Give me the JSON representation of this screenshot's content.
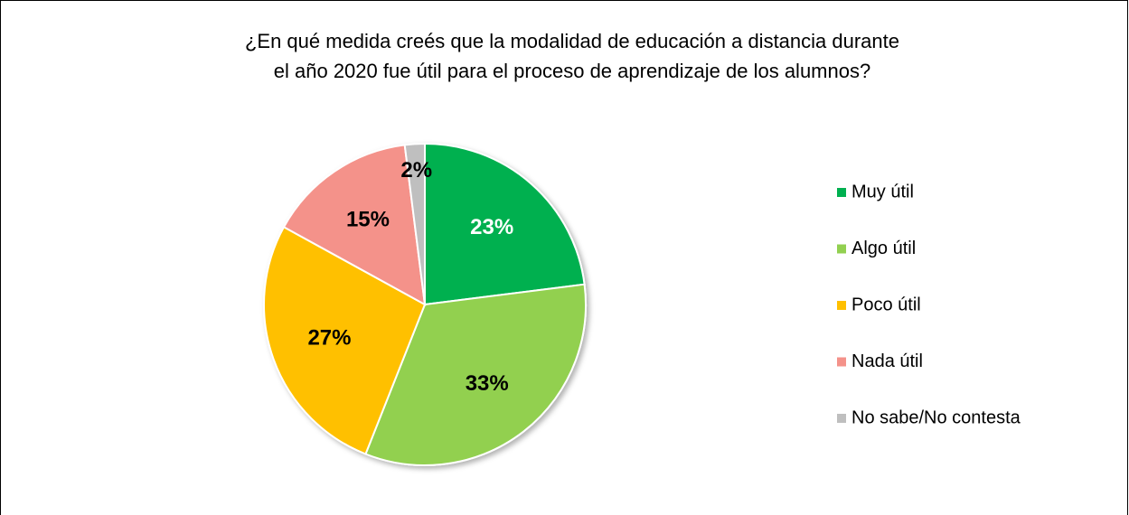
{
  "chart_data": {
    "type": "pie",
    "title": [
      "¿En qué medida creés que la modalidad de educación a distancia durante",
      "el año 2020 fue útil para el proceso de aprendizaje de los alumnos?"
    ],
    "categories": [
      "Muy útil",
      "Algo útil",
      "Poco útil",
      "Nada útil",
      "No sabe/No contesta"
    ],
    "values": [
      23,
      33,
      27,
      15,
      2
    ],
    "value_labels": [
      "23%",
      "33%",
      "27%",
      "15%",
      "2%"
    ],
    "colors": [
      "#00b050",
      "#92d050",
      "#ffc000",
      "#f4928a",
      "#bfbfbf"
    ],
    "label_colors": [
      "#ffffff",
      "#000000",
      "#000000",
      "#000000",
      "#000000"
    ],
    "legend": "right"
  }
}
